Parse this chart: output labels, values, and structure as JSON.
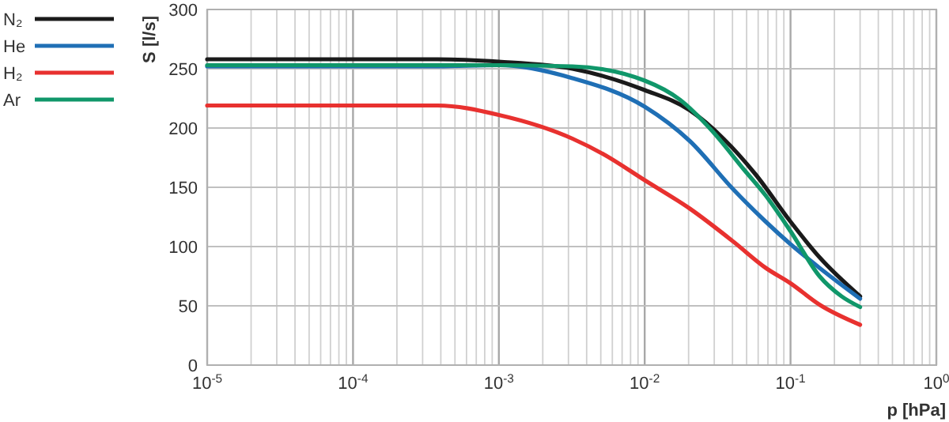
{
  "chart_data": {
    "type": "line",
    "xlabel": "p [hPa]",
    "ylabel": "S [l/s]",
    "log": "x",
    "grid": true,
    "legend": "top left",
    "line_style": "solid",
    "marker": "none",
    "xlim": [
      1e-05,
      1
    ],
    "ylim": [
      0,
      300
    ],
    "xticks": [
      {
        "value": 1e-05,
        "label": "10$^{-5}$"
      },
      {
        "value": 2e-05,
        "label": null
      },
      {
        "value": 3e-05,
        "label": null
      },
      {
        "value": 4e-05,
        "label": null
      },
      {
        "value": 5e-05,
        "label": null
      },
      {
        "value": 6e-05,
        "label": null
      },
      {
        "value": 7e-05,
        "label": null
      },
      {
        "value": 8e-05,
        "label": null
      },
      {
        "value": 9e-05,
        "label": null
      },
      {
        "value": 0.0001,
        "label": "10$^{-4}$"
      },
      {
        "value": 0.0002,
        "label": null
      },
      {
        "value": 0.0003,
        "label": null
      },
      {
        "value": 0.0004,
        "label": null
      },
      {
        "value": 0.0005,
        "label": null
      },
      {
        "value": 0.0006,
        "label": null
      },
      {
        "value": 0.0007,
        "label": null
      },
      {
        "value": 0.0008,
        "label": null
      },
      {
        "value": 0.0009,
        "label": null
      },
      {
        "value": 0.001,
        "label": "10$^{-3}$"
      },
      {
        "value": 0.002,
        "label": null
      },
      {
        "value": 0.003,
        "label": null
      },
      {
        "value": 0.004,
        "label": null
      },
      {
        "value": 0.005,
        "label": null
      },
      {
        "value": 0.006,
        "label": null
      },
      {
        "value": 0.007,
        "label": null
      },
      {
        "value": 0.008,
        "label": null
      },
      {
        "value": 0.009,
        "label": null
      },
      {
        "value": 0.01,
        "label": "10$^{-2}$"
      },
      {
        "value": 0.02,
        "label": null
      },
      {
        "value": 0.03,
        "label": null
      },
      {
        "value": 0.04,
        "label": null
      },
      {
        "value": 0.05,
        "label": null
      },
      {
        "value": 0.06,
        "label": null
      },
      {
        "value": 0.07,
        "label": null
      },
      {
        "value": 0.08,
        "label": null
      },
      {
        "value": 0.09,
        "label": null
      },
      {
        "value": 0.1,
        "label": "10$^{-1}$"
      },
      {
        "value": 0.2,
        "label": null
      },
      {
        "value": 0.3,
        "label": null
      },
      {
        "value": 0.4,
        "label": null
      },
      {
        "value": 0.5,
        "label": null
      },
      {
        "value": 0.6,
        "label": null
      },
      {
        "value": 0.7,
        "label": null
      },
      {
        "value": 0.8,
        "label": null
      },
      {
        "value": 0.9,
        "label": null
      },
      {
        "value": 1,
        "label": "10$^{0}$"
      }
    ],
    "yticks": [
      0,
      50,
      100,
      150,
      200,
      250,
      300
    ],
    "series": [
      {
        "name": "N₂",
        "color": "#1a1a1a",
        "x": [
          1e-05,
          0.00038,
          0.001,
          0.0032,
          0.01,
          0.0204,
          0.0347,
          0.0575,
          0.1,
          0.158,
          0.3
        ],
        "values": [
          258,
          258,
          256,
          250,
          232,
          215,
          191,
          161,
          121,
          91,
          58
        ]
      },
      {
        "name": "He",
        "color": "#1f6fb5",
        "x": [
          1e-05,
          0.00038,
          0.001,
          0.0032,
          0.01,
          0.0204,
          0.0407,
          0.0676,
          0.1,
          0.158,
          0.3
        ],
        "values": [
          252,
          252,
          253,
          242,
          218,
          189,
          148,
          121,
          102,
          82,
          56
        ]
      },
      {
        "name": "H₂",
        "color": "#e8312f",
        "x": [
          1e-05,
          0.00038,
          0.001,
          0.0032,
          0.0052,
          0.01,
          0.0204,
          0.0407,
          0.0676,
          0.1,
          0.158,
          0.3
        ],
        "values": [
          219,
          219,
          211,
          191,
          178,
          156,
          132,
          104,
          82,
          69,
          51,
          34
        ]
      },
      {
        "name": "Ar",
        "color": "#10976a",
        "x": [
          1e-05,
          0.00038,
          0.001,
          0.0032,
          0.01,
          0.0174,
          0.0288,
          0.0479,
          0.0676,
          0.1,
          0.158,
          0.224,
          0.3
        ],
        "values": [
          253,
          253,
          253,
          252,
          240,
          224,
          198,
          165,
          143,
          113,
          75,
          58,
          49
        ]
      }
    ]
  }
}
